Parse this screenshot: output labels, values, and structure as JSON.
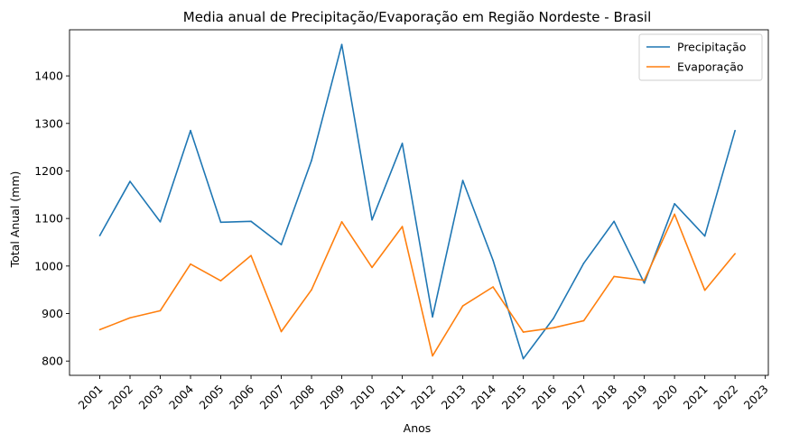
{
  "chart_data": {
    "type": "line",
    "title": "Media anual de Precipitação/Evaporação em Região Nordeste - Brasil",
    "xlabel": "Anos",
    "ylabel": "Total Anual (mm)",
    "x": [
      2001,
      2002,
      2003,
      2004,
      2005,
      2006,
      2007,
      2008,
      2009,
      2010,
      2011,
      2012,
      2013,
      2014,
      2015,
      2016,
      2017,
      2018,
      2019,
      2020,
      2021,
      2022
    ],
    "xticks": [
      "2001",
      "2002",
      "2003",
      "2004",
      "2005",
      "2006",
      "2007",
      "2008",
      "2009",
      "2010",
      "2011",
      "2012",
      "2013",
      "2014",
      "2015",
      "2016",
      "2017",
      "2018",
      "2019",
      "2020",
      "2021",
      "2022",
      "2023"
    ],
    "xlim": [
      2000.0,
      2023.1
    ],
    "yticks": [
      800,
      900,
      1000,
      1100,
      1200,
      1300,
      1400
    ],
    "ylim": [
      770,
      1497
    ],
    "grid": false,
    "legend_position": "top-right",
    "series": [
      {
        "name": "Precipitação",
        "color": "#1f77b4",
        "values": [
          1064,
          1178,
          1093,
          1285,
          1092,
          1094,
          1045,
          1222,
          1466,
          1097,
          1258,
          893,
          1180,
          1012,
          805,
          890,
          1006,
          1094,
          964,
          1131,
          1063,
          1285
        ]
      },
      {
        "name": "Evaporação",
        "color": "#ff7f0e",
        "values": [
          866,
          891,
          906,
          1004,
          969,
          1022,
          862,
          950,
          1093,
          997,
          1083,
          811,
          916,
          956,
          861,
          870,
          885,
          978,
          970,
          1109,
          949,
          1026
        ]
      }
    ]
  }
}
